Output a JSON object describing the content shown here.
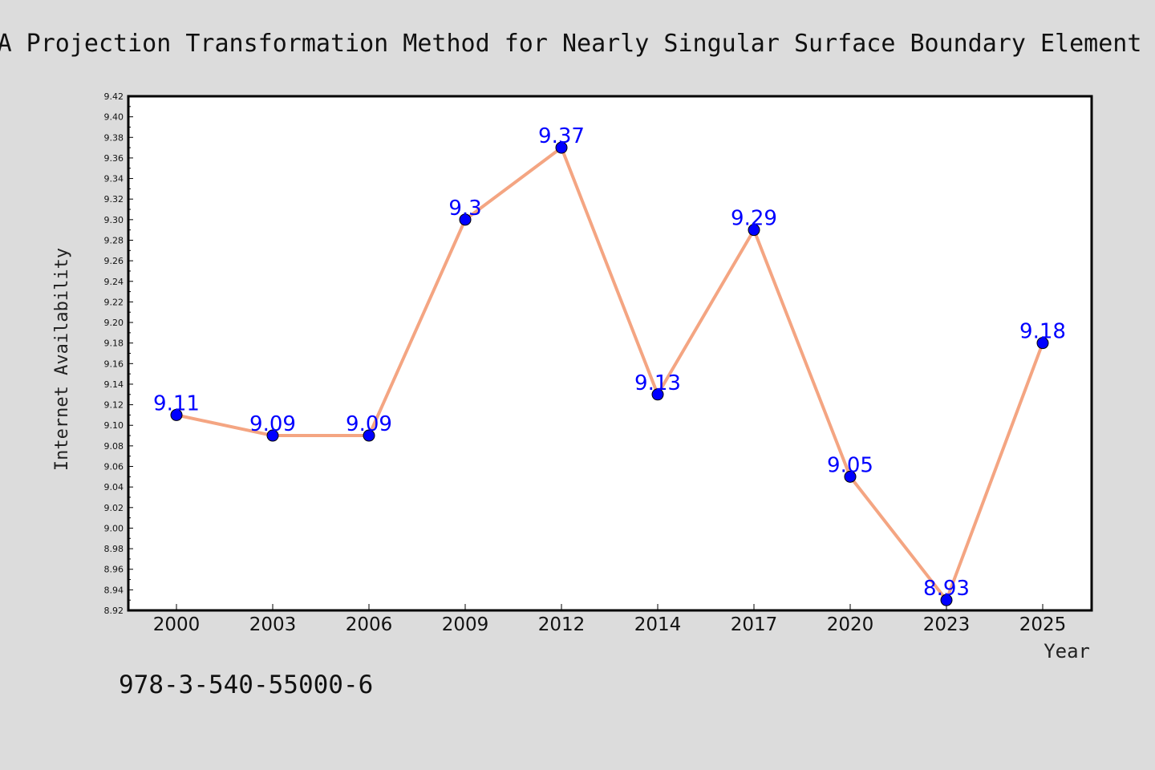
{
  "chart_data": {
    "type": "line",
    "title": "A Projection Transformation Method for Nearly Singular Surface Boundary Element",
    "xlabel": "Year",
    "ylabel": "Internet Availability",
    "categories": [
      "2000",
      "2003",
      "2006",
      "2009",
      "2012",
      "2014",
      "2017",
      "2020",
      "2023",
      "2025"
    ],
    "series": [
      {
        "values": [
          9.11,
          9.09,
          9.09,
          9.3,
          9.37,
          9.13,
          9.29,
          9.05,
          8.93,
          9.18
        ],
        "labels": [
          "9.11",
          "9.09",
          "9.09",
          "9.3",
          "9.37",
          "9.13",
          "9.29",
          "9.05",
          "8.93",
          "9.18"
        ]
      }
    ],
    "ylim": [
      8.92,
      9.42
    ],
    "yticks": [
      "8.92",
      "8.94",
      "8.96",
      "8.98",
      "9.00",
      "9.02",
      "9.04",
      "9.06",
      "9.08",
      "9.10",
      "9.12",
      "9.14",
      "9.16",
      "9.18",
      "9.20",
      "9.22",
      "9.24",
      "9.26",
      "9.28",
      "9.30",
      "9.32",
      "9.34",
      "9.36",
      "9.38",
      "9.40",
      "9.42"
    ],
    "grid": false,
    "legend": "none",
    "colors": {
      "background": "#dcdcdc",
      "plot_background": "#ffffff",
      "line": "#f4a582",
      "marker": "#0000ff",
      "data_label": "#0000ff",
      "frame": "#000000"
    }
  },
  "footnote": "978-3-540-55000-6"
}
